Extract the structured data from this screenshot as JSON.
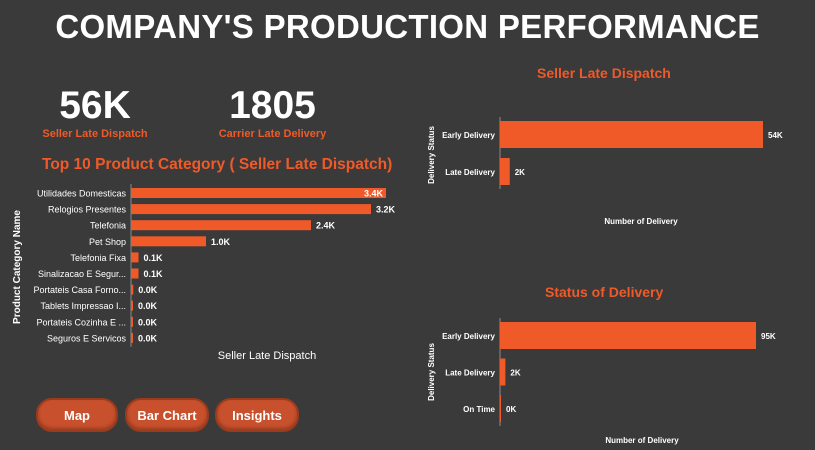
{
  "title": "COMPANY'S PRODUCTION PERFORMANCE",
  "kpis": {
    "seller_late": {
      "value": "56K",
      "label": "Seller Late Dispatch"
    },
    "carrier_late": {
      "value": "1805",
      "label": "Carrier Late Delivery"
    }
  },
  "buttons": {
    "map": "Map",
    "bar_chart": "Bar Chart",
    "insights": "Insights"
  },
  "colors": {
    "accent": "#f05a28",
    "background": "#3a3a3a",
    "text": "#ffffff",
    "button": "#c8502c"
  },
  "chart_data": [
    {
      "id": "top10",
      "type": "bar",
      "orientation": "horizontal",
      "title": "Top 10 Product Category ( Seller Late Dispatch)",
      "xlabel": "Seller Late Dispatch",
      "ylabel": "Product Category Name",
      "categories": [
        "Utilidades Domesticas",
        "Relogios Presentes",
        "Telefonia",
        "Pet Shop",
        "Telefonia Fixa",
        "Sinalizacao E Segur...",
        "Portateis Casa Forno...",
        "Tablets Impressao I...",
        "Portateis Cozinha E ...",
        "Seguros E Servicos"
      ],
      "values": [
        3.4,
        3.2,
        2.4,
        1.0,
        0.1,
        0.1,
        0.03,
        0.02,
        0.01,
        0.005
      ],
      "value_labels": [
        "3.4K",
        "3.2K",
        "2.4K",
        "1.0K",
        "0.1K",
        "0.1K",
        "0.0K",
        "0.0K",
        "0.0K",
        "0.0K"
      ],
      "xlim": [
        0,
        3.4
      ],
      "unit": "K"
    },
    {
      "id": "seller",
      "type": "bar",
      "orientation": "horizontal",
      "title": "Seller Late Dispatch",
      "xlabel": "Number of Delivery",
      "ylabel": "Delivery Status",
      "categories": [
        "Early Delivery",
        "Late Delivery"
      ],
      "values": [
        54,
        2
      ],
      "value_labels": [
        "54K",
        "2K"
      ],
      "xlim": [
        0,
        54
      ]
    },
    {
      "id": "status",
      "type": "bar",
      "orientation": "horizontal",
      "title": "Status of Delivery",
      "xlabel": "Number of Delivery",
      "ylabel": "Delivery Status",
      "categories": [
        "Early Delivery",
        "Late Delivery",
        "On Time"
      ],
      "values": [
        95,
        2,
        0
      ],
      "value_labels": [
        "95K",
        "2K",
        "0K"
      ],
      "xlim": [
        0,
        95
      ]
    }
  ]
}
